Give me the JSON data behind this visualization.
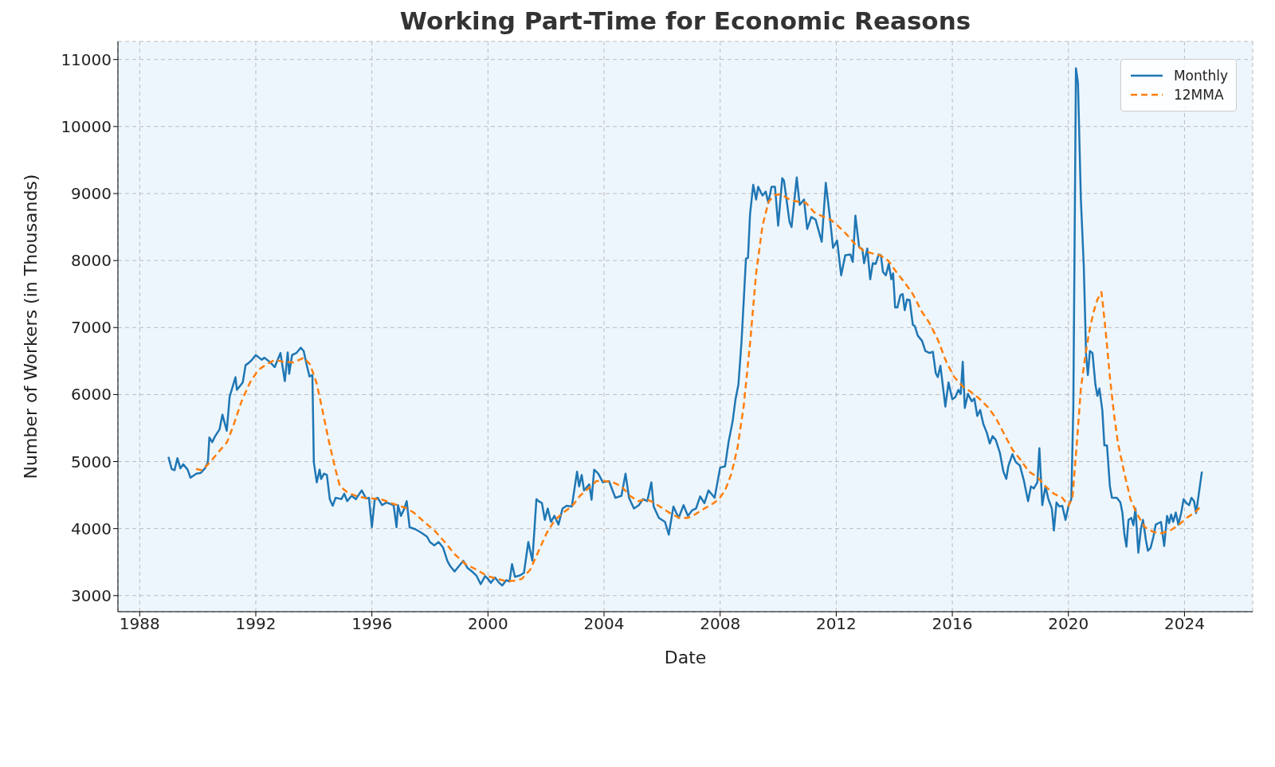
{
  "chart_data": {
    "type": "line",
    "title": "Working Part-Time for Economic Reasons",
    "xlabel": "Date",
    "ylabel": "Number of Workers (in Thousands)",
    "xlim": [
      1987.25,
      2026.35
    ],
    "xticks": [
      1988,
      1992,
      1996,
      2000,
      2004,
      2008,
      2012,
      2016,
      2020,
      2024
    ],
    "ylim": [
      2760,
      11270
    ],
    "yticks": [
      3000,
      4000,
      5000,
      6000,
      7000,
      8000,
      9000,
      10000,
      11000
    ],
    "grid": true,
    "legend": "top right",
    "marker": "none",
    "series": [
      {
        "name": "Monthly",
        "color": "#1f77b4",
        "line_style": "solid",
        "x": [
          1988.99,
          1989.1,
          1989.2,
          1989.3,
          1989.4,
          1989.5,
          1989.65,
          1989.75,
          1989.95,
          1990.1,
          1990.25,
          1990.35,
          1990.4,
          1990.5,
          1990.6,
          1990.75,
          1990.85,
          1991.0,
          1991.1,
          1991.3,
          1991.35,
          1991.55,
          1991.65,
          1991.75,
          1991.85,
          1992.0,
          1992.2,
          1992.3,
          1992.5,
          1992.65,
          1992.85,
          1993.0,
          1993.1,
          1993.15,
          1993.25,
          1993.4,
          1993.55,
          1993.65,
          1993.75,
          1993.85,
          1993.95,
          1994.0,
          1994.1,
          1994.2,
          1994.25,
          1994.35,
          1994.45,
          1994.55,
          1994.65,
          1994.75,
          1994.95,
          1995.05,
          1995.15,
          1995.3,
          1995.45,
          1995.65,
          1995.8,
          1995.9,
          1996.0,
          1996.1,
          1996.2,
          1996.35,
          1996.5,
          1996.75,
          1996.85,
          1996.9,
          1997.0,
          1997.1,
          1997.2,
          1997.3,
          1997.5,
          1997.7,
          1997.9,
          1998.0,
          1998.15,
          1998.3,
          1998.45,
          1998.6,
          1998.7,
          1998.85,
          1999.0,
          1999.15,
          1999.3,
          1999.45,
          1999.6,
          1999.75,
          1999.9,
          2000.0,
          2000.1,
          2000.24,
          2000.39,
          2000.49,
          2000.63,
          2000.74,
          2000.83,
          2000.93,
          2001.1,
          2001.24,
          2001.39,
          2001.53,
          2001.67,
          2001.74,
          2001.86,
          2001.96,
          2002.06,
          2002.17,
          2002.29,
          2002.43,
          2002.57,
          2002.71,
          2002.89,
          2003.07,
          2003.14,
          2003.23,
          2003.31,
          2003.49,
          2003.57,
          2003.66,
          2003.8,
          2003.96,
          2004.17,
          2004.39,
          2004.6,
          2004.74,
          2004.86,
          2005.03,
          2005.2,
          2005.34,
          2005.49,
          2005.63,
          2005.71,
          2005.89,
          2006.1,
          2006.23,
          2006.39,
          2006.57,
          2006.74,
          2006.89,
          2007.03,
          2007.17,
          2007.31,
          2007.46,
          2007.6,
          2007.81,
          2008.0,
          2008.17,
          2008.29,
          2008.43,
          2008.53,
          2008.63,
          2008.74,
          2008.89,
          2008.96,
          2009.03,
          2009.14,
          2009.24,
          2009.31,
          2009.46,
          2009.57,
          2009.66,
          2009.77,
          2009.89,
          2010.0,
          2010.14,
          2010.2,
          2010.39,
          2010.46,
          2010.64,
          2010.74,
          2010.89,
          2011.0,
          2011.14,
          2011.29,
          2011.5,
          2011.64,
          2011.77,
          2011.89,
          2012.03,
          2012.17,
          2012.31,
          2012.49,
          2012.57,
          2012.66,
          2012.79,
          2012.9,
          2012.96,
          2013.07,
          2013.17,
          2013.26,
          2013.36,
          2013.46,
          2013.54,
          2013.61,
          2013.71,
          2013.81,
          2013.9,
          2013.96,
          2014.03,
          2014.11,
          2014.21,
          2014.29,
          2014.36,
          2014.44,
          2014.53,
          2014.64,
          2014.71,
          2014.81,
          2014.96,
          2015.07,
          2015.21,
          2015.33,
          2015.43,
          2015.5,
          2015.59,
          2015.76,
          2015.87,
          2016.0,
          2016.1,
          2016.21,
          2016.29,
          2016.36,
          2016.43,
          2016.54,
          2016.67,
          2016.76,
          2016.86,
          2016.96,
          2017.07,
          2017.19,
          2017.29,
          2017.39,
          2017.5,
          2017.64,
          2017.76,
          2017.86,
          2017.93,
          2018.07,
          2018.19,
          2018.33,
          2018.47,
          2018.61,
          2018.71,
          2018.81,
          2018.93,
          2019.0,
          2019.1,
          2019.21,
          2019.31,
          2019.43,
          2019.5,
          2019.59,
          2019.69,
          2019.79,
          2019.9,
          2020.01,
          2020.1,
          2020.17,
          2020.26,
          2020.33,
          2020.43,
          2020.53,
          2020.61,
          2020.67,
          2020.74,
          2020.83,
          2020.93,
          2021.0,
          2021.07,
          2021.17,
          2021.24,
          2021.33,
          2021.43,
          2021.5,
          2021.67,
          2021.79,
          2021.86,
          2021.93,
          2022.0,
          2022.07,
          2022.17,
          2022.24,
          2022.31,
          2022.41,
          2022.5,
          2022.57,
          2022.67,
          2022.74,
          2022.83,
          2022.93,
          2023.01,
          2023.19,
          2023.3,
          2023.4,
          2023.47,
          2023.54,
          2023.61,
          2023.7,
          2023.79,
          2023.89,
          2023.97,
          2024.07,
          2024.16,
          2024.24,
          2024.33,
          2024.4,
          2024.6
        ],
        "values": [
          5070,
          4890,
          4870,
          5050,
          4900,
          4960,
          4880,
          4760,
          4820,
          4830,
          4900,
          4990,
          5360,
          5290,
          5380,
          5480,
          5700,
          5460,
          5970,
          6260,
          6070,
          6180,
          6440,
          6470,
          6510,
          6590,
          6520,
          6550,
          6480,
          6410,
          6620,
          6200,
          6630,
          6310,
          6590,
          6620,
          6700,
          6650,
          6450,
          6270,
          6290,
          4990,
          4690,
          4880,
          4740,
          4820,
          4800,
          4440,
          4340,
          4460,
          4440,
          4520,
          4410,
          4490,
          4440,
          4570,
          4450,
          4460,
          4020,
          4440,
          4460,
          4350,
          4390,
          4350,
          4020,
          4350,
          4190,
          4280,
          4410,
          4020,
          3990,
          3940,
          3880,
          3800,
          3750,
          3800,
          3720,
          3520,
          3440,
          3360,
          3440,
          3520,
          3410,
          3360,
          3300,
          3170,
          3290,
          3250,
          3190,
          3270,
          3190,
          3150,
          3230,
          3210,
          3470,
          3280,
          3300,
          3340,
          3800,
          3520,
          4440,
          4410,
          4380,
          4130,
          4300,
          4100,
          4190,
          4060,
          4300,
          4340,
          4330,
          4850,
          4630,
          4800,
          4570,
          4660,
          4430,
          4880,
          4820,
          4690,
          4710,
          4460,
          4490,
          4820,
          4460,
          4300,
          4350,
          4440,
          4410,
          4690,
          4330,
          4160,
          4100,
          3910,
          4330,
          4160,
          4350,
          4190,
          4270,
          4300,
          4480,
          4380,
          4570,
          4460,
          4910,
          4930,
          5290,
          5600,
          5930,
          6150,
          6810,
          8030,
          8040,
          8690,
          9130,
          8910,
          9100,
          8970,
          9030,
          8860,
          9100,
          9100,
          8520,
          9230,
          9190,
          8580,
          8500,
          9240,
          8830,
          8910,
          8470,
          8650,
          8610,
          8280,
          9160,
          8690,
          8190,
          8300,
          7780,
          8080,
          8090,
          7980,
          8670,
          8200,
          8170,
          7960,
          8180,
          7720,
          7960,
          7950,
          8090,
          8080,
          7830,
          7780,
          7950,
          7720,
          7810,
          7300,
          7300,
          7480,
          7500,
          7260,
          7420,
          7410,
          7040,
          7020,
          6880,
          6800,
          6650,
          6620,
          6640,
          6320,
          6260,
          6430,
          5820,
          6180,
          5930,
          5960,
          6070,
          6010,
          6490,
          5800,
          6010,
          5900,
          5940,
          5680,
          5770,
          5560,
          5430,
          5270,
          5380,
          5320,
          5130,
          4850,
          4740,
          4930,
          5110,
          4990,
          4940,
          4710,
          4410,
          4630,
          4600,
          4690,
          5200,
          4350,
          4630,
          4440,
          4300,
          3970,
          4390,
          4330,
          4340,
          4130,
          4350,
          4440,
          5820,
          10870,
          10650,
          8910,
          7920,
          6590,
          6290,
          6650,
          6620,
          6150,
          5980,
          6090,
          5760,
          5240,
          5240,
          4630,
          4460,
          4460,
          4390,
          4240,
          3910,
          3730,
          4130,
          4160,
          4050,
          4300,
          3640,
          4000,
          4130,
          3830,
          3670,
          3710,
          3880,
          4060,
          4100,
          3740,
          4190,
          4080,
          4210,
          4100,
          4240,
          4060,
          4240,
          4440,
          4380,
          4350,
          4460,
          4410,
          4230,
          4850
        ]
      },
      {
        "name": "12MMA",
        "color": "#ff7f0e",
        "line_style": "dashed",
        "x": [
          1989.94,
          1990.16,
          1990.44,
          1990.73,
          1991.01,
          1991.23,
          1991.51,
          1991.8,
          1992.09,
          1992.37,
          1992.66,
          1992.94,
          1993.3,
          1993.66,
          1993.87,
          1994.09,
          1994.3,
          1994.51,
          1994.73,
          1994.9,
          1995.16,
          1995.44,
          1995.73,
          1996.01,
          1996.37,
          1996.73,
          1997.16,
          1997.44,
          1997.8,
          1998.16,
          1998.51,
          1998.87,
          1999.23,
          1999.59,
          1999.94,
          2000.31,
          2000.6,
          2000.89,
          2001.17,
          2001.46,
          2001.74,
          2002.03,
          2002.31,
          2002.6,
          2002.89,
          2003.17,
          2003.46,
          2003.74,
          2004.03,
          2004.31,
          2004.6,
          2004.89,
          2005.17,
          2005.46,
          2005.74,
          2006.03,
          2006.31,
          2006.6,
          2006.89,
          2007.17,
          2007.46,
          2007.74,
          2007.96,
          2008.17,
          2008.39,
          2008.6,
          2008.81,
          2009.03,
          2009.24,
          2009.46,
          2009.67,
          2009.89,
          2010.1,
          2010.39,
          2010.67,
          2010.96,
          2011.24,
          2011.53,
          2011.81,
          2012.1,
          2012.36,
          2012.64,
          2012.93,
          2013.21,
          2013.5,
          2013.79,
          2014.07,
          2014.36,
          2014.64,
          2014.93,
          2015.21,
          2015.5,
          2015.79,
          2016.07,
          2016.36,
          2016.64,
          2016.93,
          2017.21,
          2017.5,
          2017.79,
          2018.07,
          2018.36,
          2018.64,
          2018.93,
          2019.21,
          2019.5,
          2019.79,
          2020.0,
          2020.14,
          2020.29,
          2020.43,
          2020.57,
          2020.71,
          2020.86,
          2021.0,
          2021.14,
          2021.29,
          2021.43,
          2021.57,
          2021.71,
          2021.93,
          2022.14,
          2022.36,
          2022.64,
          2022.93,
          2023.21,
          2023.5,
          2023.79,
          2024.07,
          2024.36,
          2024.6
        ],
        "values": [
          4890,
          4870,
          5000,
          5150,
          5290,
          5540,
          5900,
          6180,
          6370,
          6450,
          6520,
          6490,
          6480,
          6550,
          6450,
          6180,
          5760,
          5320,
          4910,
          4630,
          4540,
          4490,
          4460,
          4450,
          4430,
          4370,
          4310,
          4240,
          4100,
          3970,
          3800,
          3610,
          3470,
          3390,
          3300,
          3250,
          3220,
          3220,
          3250,
          3390,
          3660,
          3940,
          4130,
          4240,
          4330,
          4490,
          4600,
          4710,
          4710,
          4690,
          4630,
          4490,
          4410,
          4440,
          4380,
          4300,
          4220,
          4160,
          4160,
          4220,
          4300,
          4370,
          4440,
          4570,
          4820,
          5210,
          5820,
          6760,
          7810,
          8520,
          8880,
          8980,
          8990,
          8910,
          8880,
          8860,
          8720,
          8660,
          8610,
          8500,
          8390,
          8250,
          8150,
          8110,
          8080,
          8000,
          7830,
          7670,
          7500,
          7250,
          7070,
          6820,
          6490,
          6260,
          6120,
          6040,
          5940,
          5820,
          5650,
          5410,
          5180,
          5020,
          4850,
          4770,
          4630,
          4520,
          4460,
          4340,
          4460,
          5270,
          6090,
          6540,
          6920,
          7220,
          7420,
          7530,
          6920,
          6260,
          5710,
          5270,
          4820,
          4440,
          4220,
          4020,
          3950,
          3930,
          3970,
          4050,
          4160,
          4240,
          4350
        ]
      }
    ]
  }
}
